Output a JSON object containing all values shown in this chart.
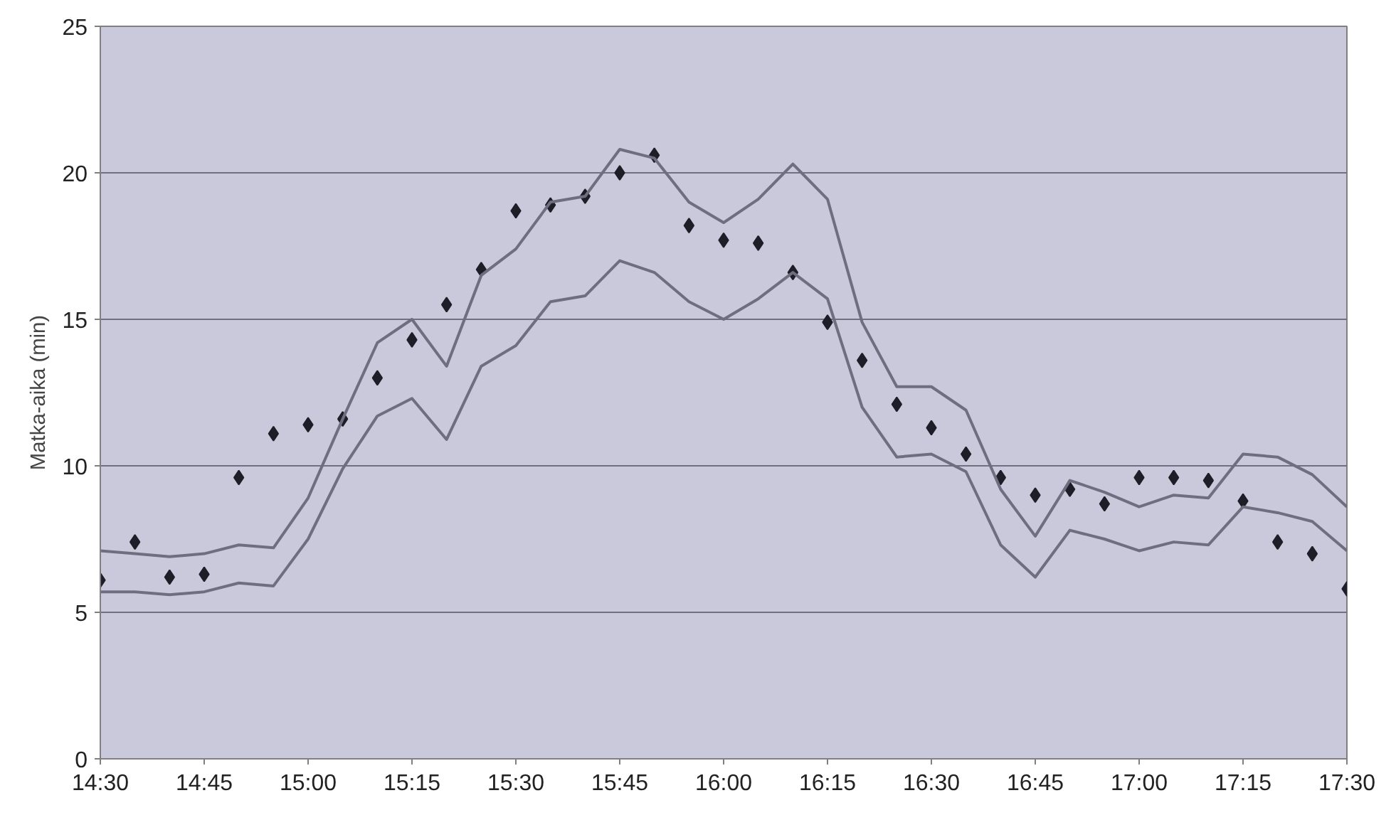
{
  "chart_data": {
    "type": "line",
    "ylabel": "Matka-aika (min)",
    "x": [
      14.5,
      14.5833,
      14.6667,
      14.75,
      14.8333,
      14.9167,
      15.0,
      15.0833,
      15.1667,
      15.25,
      15.3333,
      15.4167,
      15.5,
      15.5833,
      15.6667,
      15.75,
      15.8333,
      15.9167,
      16.0,
      16.0833,
      16.1667,
      16.25,
      16.3333,
      16.4167,
      16.5,
      16.5833,
      16.6667,
      16.75,
      16.8333,
      16.9167,
      17.0,
      17.0833,
      17.1667,
      17.25,
      17.3333,
      17.4167,
      17.5
    ],
    "series": [
      {
        "type": "scatter",
        "marker": "diamond",
        "color": "#1e1e28",
        "values": [
          6.1,
          7.4,
          6.2,
          6.3,
          9.6,
          11.1,
          11.4,
          11.6,
          13.0,
          14.3,
          15.5,
          16.7,
          18.7,
          18.9,
          19.2,
          20.0,
          20.6,
          18.2,
          17.7,
          17.6,
          16.6,
          14.9,
          13.6,
          12.1,
          11.3,
          10.4,
          9.6,
          9.0,
          9.2,
          8.7,
          9.6,
          9.6,
          9.5,
          8.8,
          7.4,
          7.0,
          5.8
        ]
      },
      {
        "color": "#6e6e80",
        "values": [
          7.1,
          7.0,
          6.9,
          7.0,
          7.3,
          7.2,
          8.9,
          11.6,
          14.2,
          15.0,
          13.4,
          16.5,
          17.4,
          19.0,
          19.2,
          20.8,
          20.5,
          19.0,
          18.3,
          19.1,
          20.3,
          19.1,
          14.9,
          12.7,
          12.7,
          11.9,
          9.2,
          7.6,
          9.5,
          9.1,
          8.6,
          9.0,
          8.9,
          10.4,
          10.3,
          9.7,
          8.6
        ]
      },
      {
        "color": "#6e6e80",
        "values": [
          5.7,
          5.7,
          5.6,
          5.7,
          6.0,
          5.9,
          7.5,
          9.9,
          11.7,
          12.3,
          10.9,
          13.4,
          14.1,
          15.6,
          15.8,
          17.0,
          16.6,
          15.6,
          15.0,
          15.7,
          16.6,
          15.7,
          12.0,
          10.3,
          10.4,
          9.8,
          7.3,
          6.2,
          7.8,
          7.5,
          7.1,
          7.4,
          7.3,
          8.6,
          8.4,
          8.1,
          7.1
        ]
      }
    ],
    "xlim": [
      14.5,
      17.5
    ],
    "xticks": [
      {
        "value": 14.5,
        "label": "14:30"
      },
      {
        "value": 14.75,
        "label": "14:45"
      },
      {
        "value": 15.0,
        "label": "15:00"
      },
      {
        "value": 15.25,
        "label": "15:15"
      },
      {
        "value": 15.5,
        "label": "15:30"
      },
      {
        "value": 15.75,
        "label": "15:45"
      },
      {
        "value": 16.0,
        "label": "16:00"
      },
      {
        "value": 16.25,
        "label": "16:15"
      },
      {
        "value": 16.5,
        "label": "16:30"
      },
      {
        "value": 16.75,
        "label": "16:45"
      },
      {
        "value": 17.0,
        "label": "17:00"
      },
      {
        "value": 17.25,
        "label": "17:15"
      },
      {
        "value": 17.5,
        "label": "17:30"
      }
    ],
    "ylim": [
      0,
      25
    ],
    "yticks": [
      0,
      5,
      10,
      15,
      20,
      25
    ],
    "grid": "y",
    "line_style": "solid"
  }
}
